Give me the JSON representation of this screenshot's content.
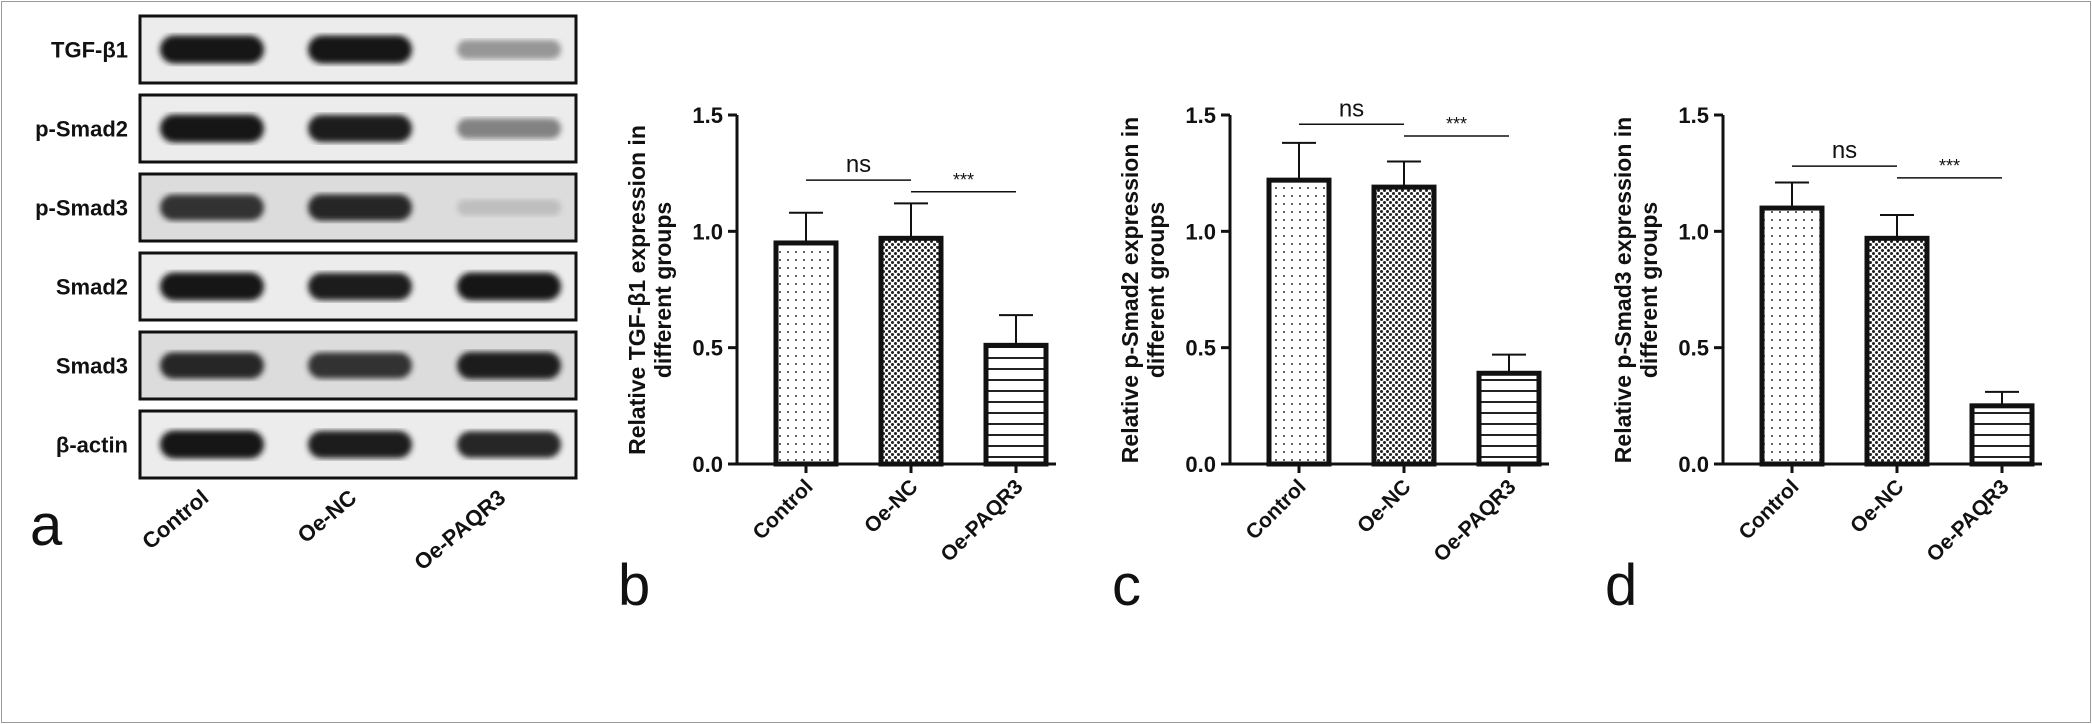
{
  "panel_a": {
    "letter": "a",
    "rows": [
      "TGF-β1",
      "p-Smad2",
      "p-Smad3",
      "Smad2",
      "Smad3",
      "β-actin"
    ],
    "lanes": [
      "Control",
      "Oe-NC",
      "Oe-PAQR3"
    ],
    "band_intensity": [
      [
        1.0,
        1.0,
        0.35
      ],
      [
        1.0,
        0.95,
        0.45
      ],
      [
        0.85,
        0.9,
        0.15
      ],
      [
        1.0,
        0.95,
        1.0
      ],
      [
        0.9,
        0.85,
        0.95
      ],
      [
        1.0,
        0.95,
        0.9
      ]
    ]
  },
  "chart_data": [
    {
      "type": "bar",
      "letter": "b",
      "categories": [
        "Control",
        "Oe-NC",
        "Oe-PAQR3"
      ],
      "values": [
        0.95,
        0.97,
        0.51
      ],
      "error": [
        0.13,
        0.15,
        0.13
      ],
      "ylabel_line1": "Relative TGF-β1 expression in",
      "ylabel_line2": "different groups",
      "ylim": [
        0,
        1.5
      ],
      "yticks": [
        "0.0",
        "0.5",
        "1.0",
        "1.5"
      ],
      "significance": [
        {
          "from": 0,
          "to": 1,
          "label": "ns",
          "level": 1.22
        },
        {
          "from": 1,
          "to": 2,
          "label": "***",
          "level": 1.17
        }
      ]
    },
    {
      "type": "bar",
      "letter": "c",
      "categories": [
        "Control",
        "Oe-NC",
        "Oe-PAQR3"
      ],
      "values": [
        1.22,
        1.19,
        0.39
      ],
      "error": [
        0.16,
        0.11,
        0.08
      ],
      "ylabel_line1": "Relative p-Smad2 expression in",
      "ylabel_line2": "different groups",
      "ylim": [
        0,
        1.5
      ],
      "yticks": [
        "0.0",
        "0.5",
        "1.0",
        "1.5"
      ],
      "significance": [
        {
          "from": 0,
          "to": 1,
          "label": "ns",
          "level": 1.46
        },
        {
          "from": 1,
          "to": 2,
          "label": "***",
          "level": 1.41
        }
      ]
    },
    {
      "type": "bar",
      "letter": "d",
      "categories": [
        "Control",
        "Oe-NC",
        "Oe-PAQR3"
      ],
      "values": [
        1.1,
        0.97,
        0.25
      ],
      "error": [
        0.11,
        0.1,
        0.06
      ],
      "ylabel_line1": "Relative p-Smad3 expression in",
      "ylabel_line2": "different groups",
      "ylim": [
        0,
        1.5
      ],
      "yticks": [
        "0.0",
        "0.5",
        "1.0",
        "1.5"
      ],
      "significance": [
        {
          "from": 0,
          "to": 1,
          "label": "ns",
          "level": 1.28
        },
        {
          "from": 1,
          "to": 2,
          "label": "***",
          "level": 1.23
        }
      ]
    }
  ],
  "bar_patterns": [
    "dots",
    "checker",
    "horizontal-lines"
  ]
}
